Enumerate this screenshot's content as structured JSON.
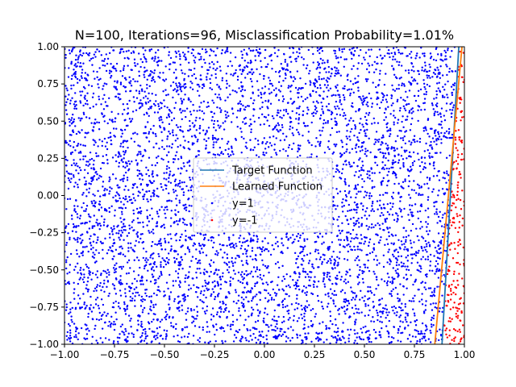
{
  "chart_data": {
    "type": "scatter",
    "title": "N=100, Iterations=96, Misclassification Probability=1.01%",
    "xlabel": "",
    "ylabel": "",
    "xlim": [
      -1.0,
      1.0
    ],
    "ylim": [
      -1.0,
      1.0
    ],
    "xticks": [
      "−1.00",
      "−0.75",
      "−0.50",
      "−0.25",
      "0.00",
      "0.25",
      "0.50",
      "0.75",
      "1.00"
    ],
    "yticks": [
      "−1.00",
      "−0.75",
      "−0.50",
      "−0.25",
      "0.00",
      "0.25",
      "0.50",
      "0.75",
      "1.00"
    ],
    "grid": false,
    "legend_position": "center",
    "lines": [
      {
        "name": "Target Function",
        "color": "#1f77b4",
        "x": [
          0.888,
          0.972
        ],
        "y": [
          -1.0,
          1.0
        ]
      },
      {
        "name": "Learned Function",
        "color": "#ff7f0e",
        "x": [
          0.852,
          0.988
        ],
        "y": [
          -1.0,
          1.0
        ]
      }
    ],
    "scatter": [
      {
        "name": "y=1",
        "color": "#0000ff",
        "marker_size": 1.2
      },
      {
        "name": "y=-1",
        "color": "#ff0000",
        "marker_size": 1.2
      }
    ],
    "sample": {
      "points_shown": 6000,
      "boundary": "target_line"
    }
  }
}
